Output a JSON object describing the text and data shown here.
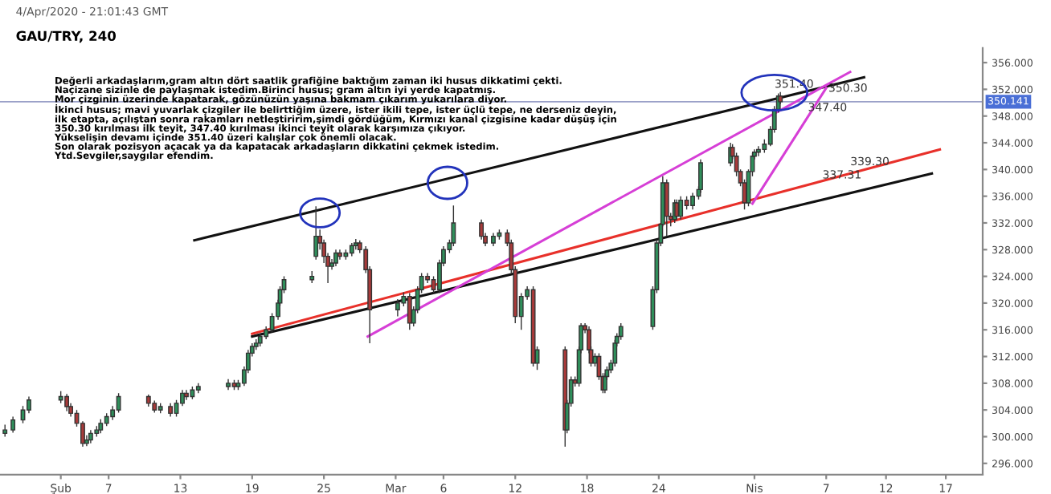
{
  "chart_data": {
    "type": "candlestick",
    "title": "GAU/TRY, 240",
    "annotations": [
      "4/Apr/2020 - 21:01:43 GMT",
      "Değerli arkadaşlarım,gram altın dört saatlik grafiğine baktığım zaman iki husus dikkatimi çekti.\nNaçizane sizinle de paylaşmak istedim.Birinci husus; gram altın iyi yerde kapatmış.\nMor çizginin üzerinde kapatarak, gözünüzün yaşına bakmam çıkarım yukarılara diyor.\nİkinci husus; mavi yuvarlak çizgiler ile belirttiğim üzere, ister ikili tepe, ister üçlü tepe, ne derseniz deyin,\nilk etapta, açılıştan sonra rakamları netleştiririm,şimdi gördüğüm, Kırmızı kanal çizgisine kadar düşüş için\n350.30 kırılması ilk teyit, 347.40 kırılması ikinci teyit olarak karşımıza çıkıyor.\nYükselişin devamı içinde 351.40 üzeri kalışlar çok önemli olacak.\nSon olarak pozisyon açacak ya da kapatacak arkadaşların dikkatini çekmek istedim.\nYtd.Sevgiler,saygılar efendim.",
      {
        "text": "351.40",
        "x": "2020-04-02T12:00",
        "y": 350.9
      },
      {
        "text": "350.30",
        "x": "2020-04-07T00:00",
        "y": 350.3
      },
      {
        "text": "347.40",
        "x": "2020-04-05T07:00",
        "y": 347.4
      },
      {
        "text": "339.30",
        "x": "2020-04-08T20:00",
        "y": 339.3
      },
      {
        "text": "337.31",
        "x": "2020-04-06T12:00",
        "y": 337.31
      }
    ],
    "x": [
      "2020-01-29T08:00",
      "2020-01-30T00:00",
      "2020-01-30T20:00",
      "2020-01-31T08:00",
      "2020-02-03T00:00",
      "2020-02-03T12:00",
      "2020-02-03T20:00",
      "2020-02-04T08:00",
      "2020-02-04T20:00",
      "2020-02-05T04:00",
      "2020-02-05T12:00",
      "2020-02-06T00:00",
      "2020-02-06T08:00",
      "2020-02-06T20:00",
      "2020-02-07T08:00",
      "2020-02-07T20:00",
      "2020-02-10T08:00",
      "2020-02-10T20:00",
      "2020-02-11T08:00",
      "2020-02-12T04:00",
      "2020-02-12T16:00",
      "2020-02-13T04:00",
      "2020-02-13T12:00",
      "2020-02-14T00:00",
      "2020-02-14T12:00",
      "2020-02-17T00:00",
      "2020-02-17T12:00",
      "2020-02-17T20:00",
      "2020-02-18T08:00",
      "2020-02-18T16:00",
      "2020-02-19T00:00",
      "2020-02-19T08:00",
      "2020-02-19T16:00",
      "2020-02-20T04:00",
      "2020-02-20T16:00",
      "2020-02-21T04:00",
      "2020-02-21T08:00",
      "2020-02-21T16:00",
      "2020-02-24T00:00",
      "2020-02-24T08:00",
      "2020-02-24T16:00",
      "2020-02-25T00:00",
      "2020-02-25T08:00",
      "2020-02-25T16:00",
      "2020-02-26T00:00",
      "2020-02-26T08:00",
      "2020-02-26T20:00",
      "2020-02-27T08:00",
      "2020-02-27T16:00",
      "2020-02-28T00:00",
      "2020-02-28T12:00",
      "2020-02-28T20:00",
      "2020-03-02T04:00",
      "2020-03-02T16:00",
      "2020-03-03T04:00",
      "2020-03-03T12:00",
      "2020-03-03T20:00",
      "2020-03-04T04:00",
      "2020-03-04T16:00",
      "2020-03-05T04:00",
      "2020-03-05T16:00",
      "2020-03-06T00:00",
      "2020-03-06T12:00",
      "2020-03-06T20:00",
      "2020-03-09T04:00",
      "2020-03-09T12:00",
      "2020-03-10T04:00",
      "2020-03-10T16:00",
      "2020-03-11T08:00",
      "2020-03-11T16:00",
      "2020-03-12T00:00",
      "2020-03-12T12:00",
      "2020-03-13T00:00",
      "2020-03-13T12:00",
      "2020-03-13T20:00",
      "2020-03-16T04:00",
      "2020-03-16T08:00",
      "2020-03-16T16:00",
      "2020-03-17T00:00",
      "2020-03-17T08:00",
      "2020-03-17T12:00",
      "2020-03-17T20:00",
      "2020-03-18T04:00",
      "2020-03-18T08:00",
      "2020-03-18T16:00",
      "2020-03-19T00:00",
      "2020-03-19T08:00",
      "2020-03-19T12:00",
      "2020-03-19T16:00",
      "2020-03-20T00:00",
      "2020-03-20T08:00",
      "2020-03-20T12:00",
      "2020-03-20T20:00",
      "2020-03-23T12:00",
      "2020-03-23T20:00",
      "2020-03-24T04:00",
      "2020-03-24T08:00",
      "2020-03-24T16:00",
      "2020-03-25T00:00",
      "2020-03-25T08:00",
      "2020-03-25T12:00",
      "2020-03-25T20:00",
      "2020-03-26T08:00",
      "2020-03-26T20:00",
      "2020-03-27T08:00",
      "2020-03-27T12:00",
      "2020-03-30T00:00",
      "2020-03-30T04:00",
      "2020-03-30T12:00",
      "2020-03-30T20:00",
      "2020-03-31T04:00",
      "2020-03-31T12:00",
      "2020-03-31T20:00",
      "2020-04-01T00:00",
      "2020-04-01T08:00",
      "2020-04-01T20:00",
      "2020-04-02T08:00",
      "2020-04-02T16:00",
      "2020-04-03T00:00",
      "2020-04-03T04:00"
    ],
    "ohlc": [
      [
        300.5,
        301.8,
        300.0,
        301
      ],
      [
        301,
        303.0,
        300.6,
        302.5
      ],
      [
        302.5,
        304.6,
        302.0,
        304
      ],
      [
        304,
        306.0,
        303.5,
        305.5
      ],
      [
        305.5,
        306.8,
        305.0,
        306
      ],
      [
        306,
        306.4,
        303.8,
        304.5
      ],
      [
        304.5,
        305.0,
        303.0,
        303.5
      ],
      [
        303.5,
        304.0,
        301.5,
        302
      ],
      [
        302,
        302.3,
        298.5,
        299
      ],
      [
        299,
        300.2,
        298.6,
        299.5
      ],
      [
        299.5,
        301.0,
        299.0,
        300.5
      ],
      [
        300.5,
        301.6,
        300.0,
        301
      ],
      [
        301,
        302.6,
        300.5,
        302
      ],
      [
        302,
        303.5,
        301.6,
        303
      ],
      [
        303,
        304.6,
        302.5,
        304
      ],
      [
        304,
        306.5,
        303.6,
        306
      ],
      [
        306,
        306.3,
        304.5,
        305
      ],
      [
        305,
        305.4,
        303.6,
        304
      ],
      [
        304,
        305.0,
        303.5,
        304.5
      ],
      [
        304.5,
        305.0,
        303.0,
        303.5
      ],
      [
        303.5,
        305.5,
        303.0,
        305
      ],
      [
        305,
        307.0,
        304.6,
        306.5
      ],
      [
        306.5,
        307.0,
        305.5,
        306
      ],
      [
        306,
        307.5,
        305.6,
        307
      ],
      [
        307,
        308.0,
        306.5,
        307.5
      ],
      [
        307.5,
        308.6,
        307.0,
        308
      ],
      [
        308,
        308.5,
        307.0,
        307.5
      ],
      [
        307.5,
        308.5,
        307.0,
        308
      ],
      [
        308,
        310.5,
        307.6,
        310
      ],
      [
        310,
        313.0,
        309.5,
        312.5
      ],
      [
        312.5,
        314.0,
        312.0,
        313.5
      ],
      [
        313.5,
        314.6,
        313.0,
        314
      ],
      [
        314,
        315.5,
        313.5,
        315
      ],
      [
        315,
        316.5,
        314.6,
        316
      ],
      [
        316,
        318.5,
        315.6,
        318
      ],
      [
        318,
        320.5,
        317.5,
        320
      ],
      [
        320,
        322.5,
        319.6,
        322
      ],
      [
        322,
        324.0,
        321.5,
        323.5
      ],
      [
        323.5,
        324.8,
        323.0,
        324
      ],
      [
        327,
        334.5,
        326.5,
        330
      ],
      [
        330,
        331.0,
        328.0,
        329
      ],
      [
        329,
        329.5,
        326.0,
        327
      ],
      [
        327,
        327.5,
        323.0,
        325.5
      ],
      [
        325.5,
        326.6,
        325.0,
        326
      ],
      [
        326,
        328.0,
        325.5,
        327.5
      ],
      [
        327.5,
        328.0,
        326.5,
        327
      ],
      [
        327,
        328.0,
        326.5,
        327.5
      ],
      [
        327.5,
        329.0,
        327.0,
        328.6
      ],
      [
        328.6,
        329.6,
        328.0,
        329
      ],
      [
        329,
        329.4,
        327.5,
        328
      ],
      [
        328,
        328.5,
        324.5,
        325
      ],
      [
        325,
        325.5,
        314.0,
        319
      ],
      [
        319,
        320.6,
        318.0,
        320
      ],
      [
        320,
        321.6,
        319.5,
        321
      ],
      [
        321,
        321.5,
        316.0,
        317
      ],
      [
        317,
        319.5,
        316.5,
        319
      ],
      [
        319,
        322.5,
        318.5,
        322
      ],
      [
        322,
        324.5,
        321.5,
        324
      ],
      [
        324,
        324.5,
        323.0,
        323.5
      ],
      [
        323.5,
        324.0,
        321.5,
        322
      ],
      [
        322,
        326.5,
        321.5,
        326
      ],
      [
        326,
        328.5,
        325.5,
        328
      ],
      [
        328,
        329.5,
        327.5,
        329
      ],
      [
        329,
        334.6,
        328.5,
        332
      ],
      [
        332,
        332.5,
        329.5,
        330
      ],
      [
        330,
        330.5,
        328.5,
        329
      ],
      [
        329,
        330.5,
        328.5,
        330
      ],
      [
        330,
        331.0,
        329.5,
        330.5
      ],
      [
        330.5,
        331.0,
        328.5,
        329
      ],
      [
        329,
        329.5,
        324.5,
        325
      ],
      [
        325,
        325.5,
        317.0,
        318
      ],
      [
        318,
        321.5,
        316.0,
        321
      ],
      [
        321,
        322.5,
        320.5,
        322
      ],
      [
        322,
        322.5,
        310.5,
        311
      ],
      [
        311,
        313.5,
        310.0,
        313
      ],
      [
        313,
        313.5,
        298.5,
        301
      ],
      [
        301,
        305.5,
        300.5,
        305
      ],
      [
        305,
        309.0,
        304.5,
        308.5
      ],
      [
        308.5,
        309.0,
        307.5,
        308
      ],
      [
        308,
        313.5,
        307.5,
        313
      ],
      [
        313,
        317.0,
        312.5,
        316.6
      ],
      [
        316.6,
        317.0,
        315.5,
        316
      ],
      [
        316,
        316.5,
        312.5,
        313
      ],
      [
        313,
        313.5,
        310.5,
        311
      ],
      [
        311,
        312.5,
        310.5,
        312
      ],
      [
        312,
        312.5,
        308.5,
        309
      ],
      [
        309,
        309.5,
        306.5,
        307
      ],
      [
        307,
        309.5,
        306.5,
        309
      ],
      [
        309,
        310.5,
        308.5,
        310
      ],
      [
        310,
        311.5,
        309.5,
        311
      ],
      [
        311,
        314.5,
        310.5,
        314
      ],
      [
        314,
        315.5,
        313.5,
        315
      ],
      [
        315,
        317.0,
        314.5,
        316.5
      ],
      [
        316.5,
        322.5,
        316.0,
        322
      ],
      [
        322,
        329.5,
        321.5,
        329
      ],
      [
        329,
        332.0,
        328.5,
        331.8
      ],
      [
        331.8,
        339.0,
        331.5,
        338
      ],
      [
        338,
        338.5,
        330.0,
        333
      ],
      [
        333,
        333.5,
        331.5,
        332.5
      ],
      [
        332.5,
        335.5,
        332.0,
        335
      ],
      [
        335,
        335.5,
        332.5,
        333
      ],
      [
        333,
        336.0,
        332.5,
        335.4
      ],
      [
        335.4,
        336.0,
        334.0,
        334.6
      ],
      [
        334.6,
        336.5,
        334.0,
        336
      ],
      [
        336,
        337.5,
        335.5,
        337
      ],
      [
        337,
        341.5,
        336.5,
        341
      ],
      [
        341,
        344.0,
        340.5,
        343.3
      ],
      [
        343.3,
        343.8,
        341.5,
        342
      ],
      [
        342,
        342.5,
        339.0,
        339.7
      ],
      [
        339.7,
        340.0,
        337.5,
        338
      ],
      [
        338,
        338.5,
        334.0,
        335
      ],
      [
        335,
        340.0,
        334.5,
        339.7
      ],
      [
        339.7,
        342.5,
        339.0,
        342
      ],
      [
        342,
        343.0,
        341.5,
        342.6
      ],
      [
        342.6,
        343.5,
        342.0,
        343
      ],
      [
        343,
        344.5,
        342.5,
        343.8
      ],
      [
        343.8,
        346.5,
        343.5,
        346
      ],
      [
        346,
        349.5,
        345.5,
        349
      ],
      [
        349,
        351.4,
        348.5,
        351
      ],
      [
        351,
        351.6,
        349.8,
        350.141
      ]
    ],
    "series": [
      {
        "type": "line",
        "color": "#111111",
        "x": [
          "2020-02-14T04:00",
          "2020-04-10T04:00"
        ],
        "values": [
          329.4,
          353.8
        ]
      },
      {
        "type": "line",
        "color": "#111111",
        "x": [
          "2020-02-19T00:00",
          "2020-04-15T20:00"
        ],
        "values": [
          315.0,
          339.4
        ]
      },
      {
        "type": "line",
        "color": "#e8302a",
        "x": [
          "2020-02-19T00:00",
          "2020-04-16T12:00"
        ],
        "values": [
          315.4,
          343.0
        ]
      },
      {
        "type": "line",
        "color": "#d63fd6",
        "x": [
          "2020-02-28T16:00",
          "2020-04-09T00:00"
        ],
        "values": [
          315.0,
          354.6
        ]
      },
      {
        "type": "line",
        "color": "#d63fd6",
        "x": [
          "2020-03-31T20:00",
          "2020-04-07T00:00"
        ],
        "values": [
          334.9,
          352.2
        ]
      }
    ],
    "ref_lines": [
      {
        "axis": "y",
        "value": 350.141,
        "label": "350.141",
        "color": "#9aa0c8"
      }
    ],
    "xlim": [
      "2020-01-28T22:00",
      "2020-04-20T02:00"
    ],
    "xticks": [
      {
        "value": "2020-02-03",
        "label": "Şub"
      },
      {
        "value": "2020-02-07",
        "label": "7"
      },
      {
        "value": "2020-02-13",
        "label": "13"
      },
      {
        "value": "2020-02-19",
        "label": "19"
      },
      {
        "value": "2020-02-25",
        "label": "25"
      },
      {
        "value": "2020-03-02",
        "label": "Mar"
      },
      {
        "value": "2020-03-06",
        "label": "6"
      },
      {
        "value": "2020-03-12",
        "label": "12"
      },
      {
        "value": "2020-03-18",
        "label": "18"
      },
      {
        "value": "2020-03-24",
        "label": "24"
      },
      {
        "value": "2020-04-01",
        "label": "Nis"
      },
      {
        "value": "2020-04-07",
        "label": "7"
      },
      {
        "value": "2020-04-12",
        "label": "12"
      },
      {
        "value": "2020-04-17",
        "label": "17"
      }
    ],
    "ylim": [
      294.3,
      358.2
    ],
    "yticks": [
      {
        "value": 296,
        "label": "296.000"
      },
      {
        "value": 300,
        "label": "300.000"
      },
      {
        "value": 304,
        "label": "304.000"
      },
      {
        "value": 308,
        "label": "308.000"
      },
      {
        "value": 312,
        "label": "312.000"
      },
      {
        "value": 316,
        "label": "316.000"
      },
      {
        "value": 320,
        "label": "320.000"
      },
      {
        "value": 324,
        "label": "324.000"
      },
      {
        "value": 328,
        "label": "328.000"
      },
      {
        "value": 332,
        "label": "332.000"
      },
      {
        "value": 336,
        "label": "336.000"
      },
      {
        "value": 340,
        "label": "340.000"
      },
      {
        "value": 344,
        "label": "344.000"
      },
      {
        "value": 348,
        "label": "348.000"
      },
      {
        "value": 352,
        "label": "352.000"
      },
      {
        "value": 356,
        "label": "356.000"
      }
    ],
    "grid": false
  }
}
